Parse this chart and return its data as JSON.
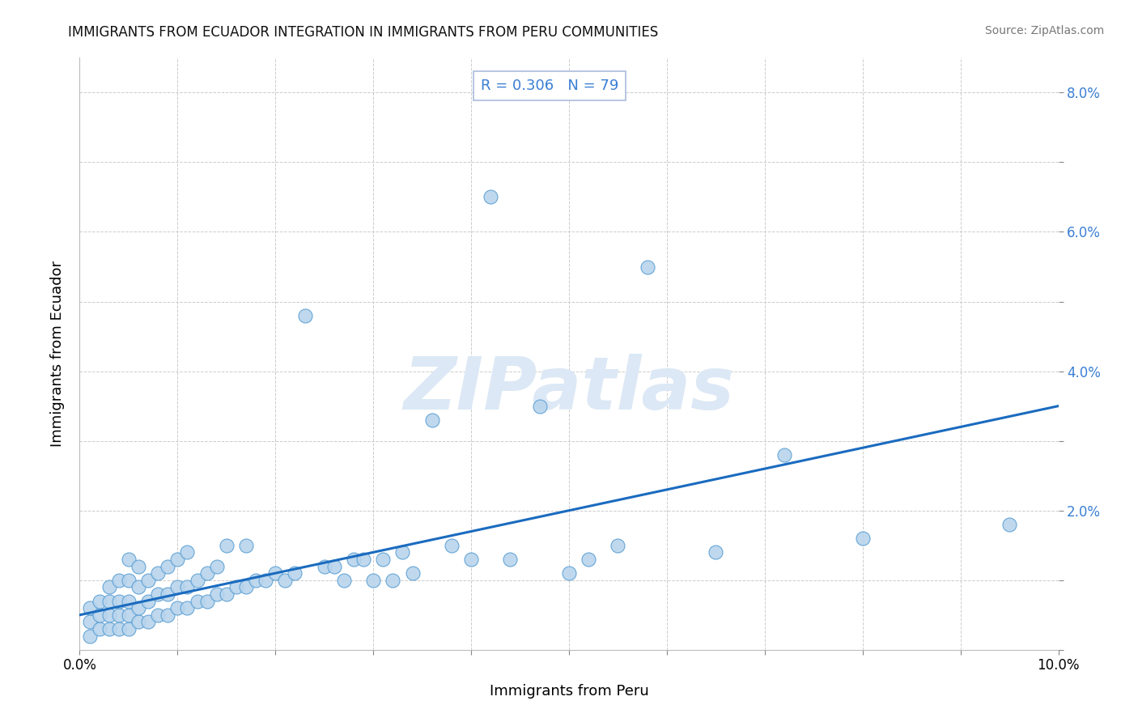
{
  "title": "IMMIGRANTS FROM ECUADOR INTEGRATION IN IMMIGRANTS FROM PERU COMMUNITIES",
  "source": "Source: ZipAtlas.com",
  "xlabel": "Immigrants from Peru",
  "ylabel": "Immigrants from Ecuador",
  "R": 0.306,
  "N": 79,
  "xlim": [
    0.0,
    0.1
  ],
  "ylim": [
    0.0,
    0.085
  ],
  "xticks": [
    0.0,
    0.01,
    0.02,
    0.03,
    0.04,
    0.05,
    0.06,
    0.07,
    0.08,
    0.09,
    0.1
  ],
  "yticks": [
    0.0,
    0.01,
    0.02,
    0.03,
    0.04,
    0.05,
    0.06,
    0.07,
    0.08
  ],
  "scatter_color": "#b8d4ec",
  "scatter_edge_color": "#5a9fd4",
  "line_color": "#1a6bbf",
  "watermark_color": "#dce8f5",
  "title_color": "#111111",
  "annotation_color": "#3a7fd4",
  "ytick_color": "#3a7fd4",
  "scatter_x": [
    0.001,
    0.001,
    0.001,
    0.002,
    0.002,
    0.002,
    0.003,
    0.003,
    0.003,
    0.003,
    0.004,
    0.004,
    0.004,
    0.004,
    0.005,
    0.005,
    0.005,
    0.005,
    0.005,
    0.006,
    0.006,
    0.006,
    0.006,
    0.007,
    0.007,
    0.007,
    0.008,
    0.008,
    0.008,
    0.009,
    0.009,
    0.009,
    0.01,
    0.01,
    0.01,
    0.011,
    0.011,
    0.011,
    0.012,
    0.012,
    0.013,
    0.013,
    0.014,
    0.014,
    0.015,
    0.015,
    0.016,
    0.017,
    0.017,
    0.018,
    0.019,
    0.02,
    0.021,
    0.022,
    0.023,
    0.025,
    0.026,
    0.027,
    0.028,
    0.029,
    0.03,
    0.031,
    0.032,
    0.033,
    0.034,
    0.036,
    0.038,
    0.04,
    0.042,
    0.044,
    0.047,
    0.05,
    0.052,
    0.055,
    0.058,
    0.065,
    0.072,
    0.08,
    0.095
  ],
  "scatter_y": [
    0.002,
    0.004,
    0.006,
    0.003,
    0.005,
    0.007,
    0.003,
    0.005,
    0.007,
    0.009,
    0.003,
    0.005,
    0.007,
    0.01,
    0.003,
    0.005,
    0.007,
    0.01,
    0.013,
    0.004,
    0.006,
    0.009,
    0.012,
    0.004,
    0.007,
    0.01,
    0.005,
    0.008,
    0.011,
    0.005,
    0.008,
    0.012,
    0.006,
    0.009,
    0.013,
    0.006,
    0.009,
    0.014,
    0.007,
    0.01,
    0.007,
    0.011,
    0.008,
    0.012,
    0.008,
    0.015,
    0.009,
    0.009,
    0.015,
    0.01,
    0.01,
    0.011,
    0.01,
    0.011,
    0.048,
    0.012,
    0.012,
    0.01,
    0.013,
    0.013,
    0.01,
    0.013,
    0.01,
    0.014,
    0.011,
    0.033,
    0.015,
    0.013,
    0.065,
    0.013,
    0.035,
    0.011,
    0.013,
    0.015,
    0.055,
    0.014,
    0.028,
    0.016,
    0.018
  ],
  "line_x0": 0.0,
  "line_y0": 0.005,
  "line_x1": 0.1,
  "line_y1": 0.035
}
